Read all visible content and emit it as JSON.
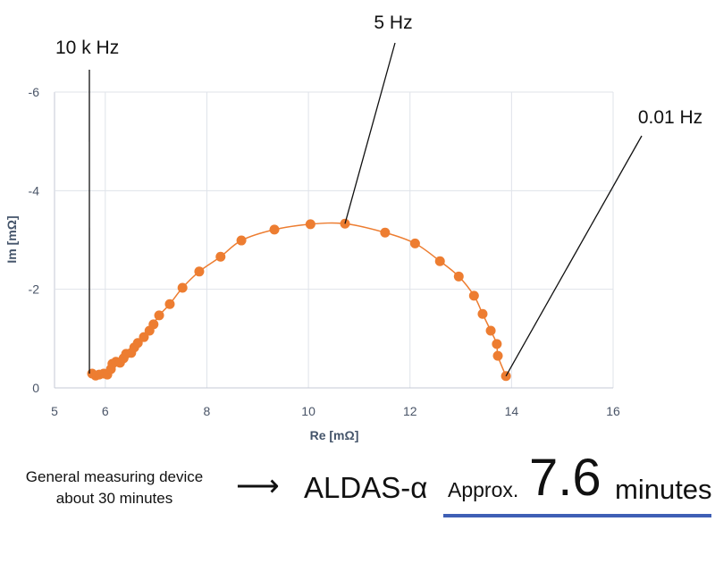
{
  "chart_data": {
    "type": "scatter",
    "xlabel": "Re [mΩ]",
    "ylabel": "Im [mΩ]",
    "xlim": [
      5,
      16
    ],
    "ylim": [
      0,
      -6
    ],
    "xticks": [
      "5",
      "6",
      "8",
      "10",
      "12",
      "14",
      "16"
    ],
    "xtick_values": [
      5,
      6,
      8,
      10,
      12,
      14,
      16
    ],
    "yticks": [
      "-6",
      "-4",
      "-2",
      "0"
    ],
    "ytick_values": [
      -6,
      -4,
      -2,
      0
    ],
    "grid": true,
    "series_color": "#ED7D31",
    "x": [
      5.74,
      5.81,
      5.88,
      5.97,
      6.04,
      6.11,
      6.14,
      6.21,
      6.29,
      6.36,
      6.41,
      6.51,
      6.57,
      6.64,
      6.76,
      6.87,
      6.95,
      7.06,
      7.27,
      7.52,
      7.85,
      8.27,
      8.68,
      9.33,
      10.04,
      10.72,
      11.51,
      12.1,
      12.59,
      12.96,
      13.26,
      13.43,
      13.59,
      13.71,
      13.73,
      13.89
    ],
    "y": [
      -0.29,
      -0.25,
      -0.27,
      -0.29,
      -0.27,
      -0.38,
      -0.49,
      -0.53,
      -0.51,
      -0.6,
      -0.69,
      -0.71,
      -0.82,
      -0.91,
      -1.03,
      -1.16,
      -1.29,
      -1.47,
      -1.7,
      -2.03,
      -2.36,
      -2.66,
      -2.99,
      -3.21,
      -3.32,
      -3.33,
      -3.15,
      -2.93,
      -2.57,
      -2.26,
      -1.87,
      -1.5,
      -1.16,
      -0.89,
      -0.65,
      -0.24
    ],
    "annotations": [
      {
        "text": "10 k Hz",
        "x": 5.74,
        "y": -0.29
      },
      {
        "text": "5 Hz",
        "x": 10.72,
        "y": -3.33
      },
      {
        "text": "0.01 Hz",
        "x": 13.89,
        "y": -0.24
      }
    ]
  },
  "caption": {
    "general_line1": "General measuring device",
    "general_line2": "about 30 minutes",
    "arrow": "⟶",
    "product": "ALDAS-α",
    "approx": "Approx.",
    "value": "7.6",
    "unit": "minutes",
    "underline_color": "#3F5FB5"
  }
}
